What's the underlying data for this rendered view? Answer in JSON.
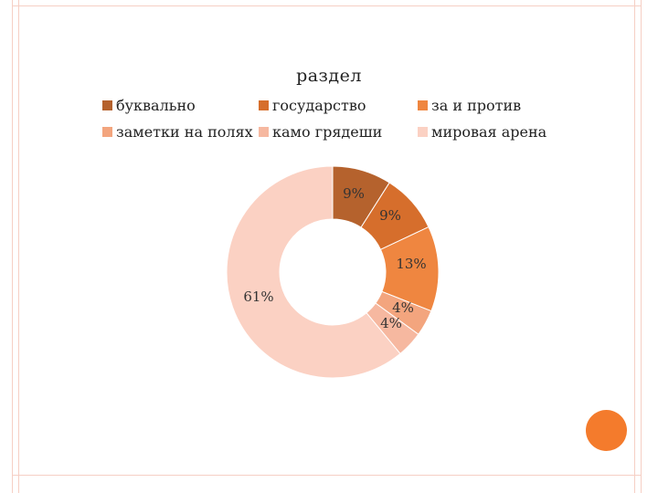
{
  "colors": {
    "frame": "#f6cfc4",
    "accent_circle": "#f47b2c"
  },
  "chart_data": {
    "type": "pie",
    "variant": "donut",
    "title": "раздел",
    "legend_position": "top",
    "slices": [
      {
        "label": "буквально",
        "value": 9,
        "value_label": "9%",
        "color": "#b5622d"
      },
      {
        "label": "государство",
        "value": 9,
        "value_label": "9%",
        "color": "#d66e2c"
      },
      {
        "label": "за и против",
        "value": 13,
        "value_label": "13%",
        "color": "#ef8640"
      },
      {
        "label": "заметки на полях",
        "value": 4,
        "value_label": "4%",
        "color": "#f3a57e"
      },
      {
        "label": "камо грядеши",
        "value": 4,
        "value_label": "4%",
        "color": "#f6b8a0"
      },
      {
        "label": "мировая арена",
        "value": 61,
        "value_label": "61%",
        "color": "#fbd1c3"
      }
    ]
  }
}
